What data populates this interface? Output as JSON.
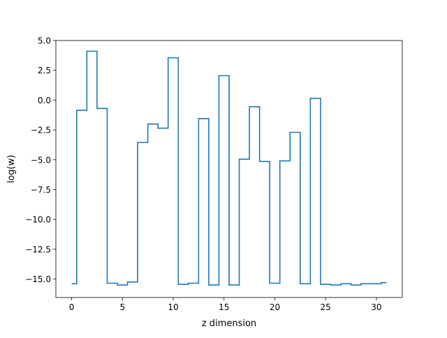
{
  "chart_data": {
    "type": "line",
    "drawstyle": "steps-mid",
    "xlabel": "z dimension",
    "ylabel": "log(w)",
    "xlim": [
      -1.55,
      32.55
    ],
    "ylim": [
      -16.55,
      5.0
    ],
    "xticks": [
      0,
      5,
      10,
      15,
      20,
      25,
      30
    ],
    "xtick_labels": [
      "0",
      "5",
      "10",
      "15",
      "20",
      "25",
      "30"
    ],
    "yticks": [
      5.0,
      2.5,
      0.0,
      -2.5,
      -5.0,
      -7.5,
      -10.0,
      -12.5,
      -15.0
    ],
    "ytick_labels": [
      "5.0",
      "2.5",
      "0.0",
      "−2.5",
      "−5.0",
      "−7.5",
      "−10.0",
      "−12.5",
      "−15.0"
    ],
    "grid": false,
    "series": [
      {
        "color": "#1f77b4",
        "x": [
          0,
          1,
          2,
          3,
          4,
          5,
          6,
          7,
          8,
          9,
          10,
          11,
          12,
          13,
          14,
          15,
          16,
          17,
          18,
          19,
          20,
          21,
          22,
          23,
          24,
          25,
          26,
          27,
          28,
          29,
          30,
          31
        ],
        "values": [
          -15.4,
          -0.85,
          4.1,
          -0.7,
          -15.35,
          -15.5,
          -15.25,
          -3.55,
          -2.0,
          -2.35,
          3.55,
          -15.45,
          -15.35,
          -1.55,
          -15.5,
          2.05,
          -15.5,
          -4.95,
          -0.55,
          -5.15,
          -15.35,
          -5.1,
          -2.7,
          -15.4,
          0.15,
          -15.45,
          -15.5,
          -15.4,
          -15.5,
          -15.4,
          -15.4,
          -15.3
        ]
      }
    ]
  }
}
